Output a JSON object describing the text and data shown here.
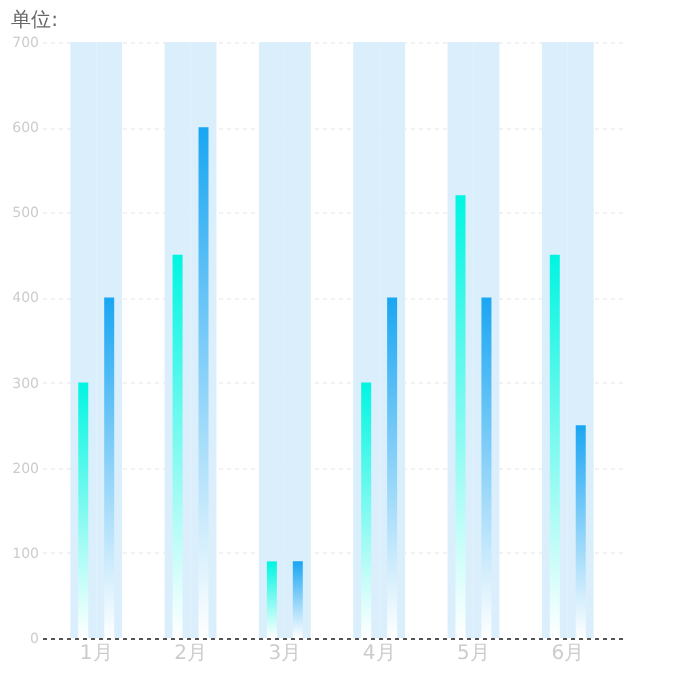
{
  "chart_data": {
    "type": "bar",
    "ylabel": "单位:",
    "categories": [
      "1月",
      "2月",
      "3月",
      "4月",
      "5月",
      "6月"
    ],
    "series": [
      {
        "color": "#00f5e1",
        "values": [
          300,
          450,
          90,
          300,
          520,
          450
        ]
      },
      {
        "color": "#1aa6f2",
        "values": [
          400,
          600,
          90,
          400,
          400,
          250
        ]
      }
    ],
    "ylim": [
      0,
      700
    ],
    "yticks": [
      0,
      100,
      200,
      300,
      400,
      500,
      600,
      700
    ],
    "grid": "y"
  }
}
